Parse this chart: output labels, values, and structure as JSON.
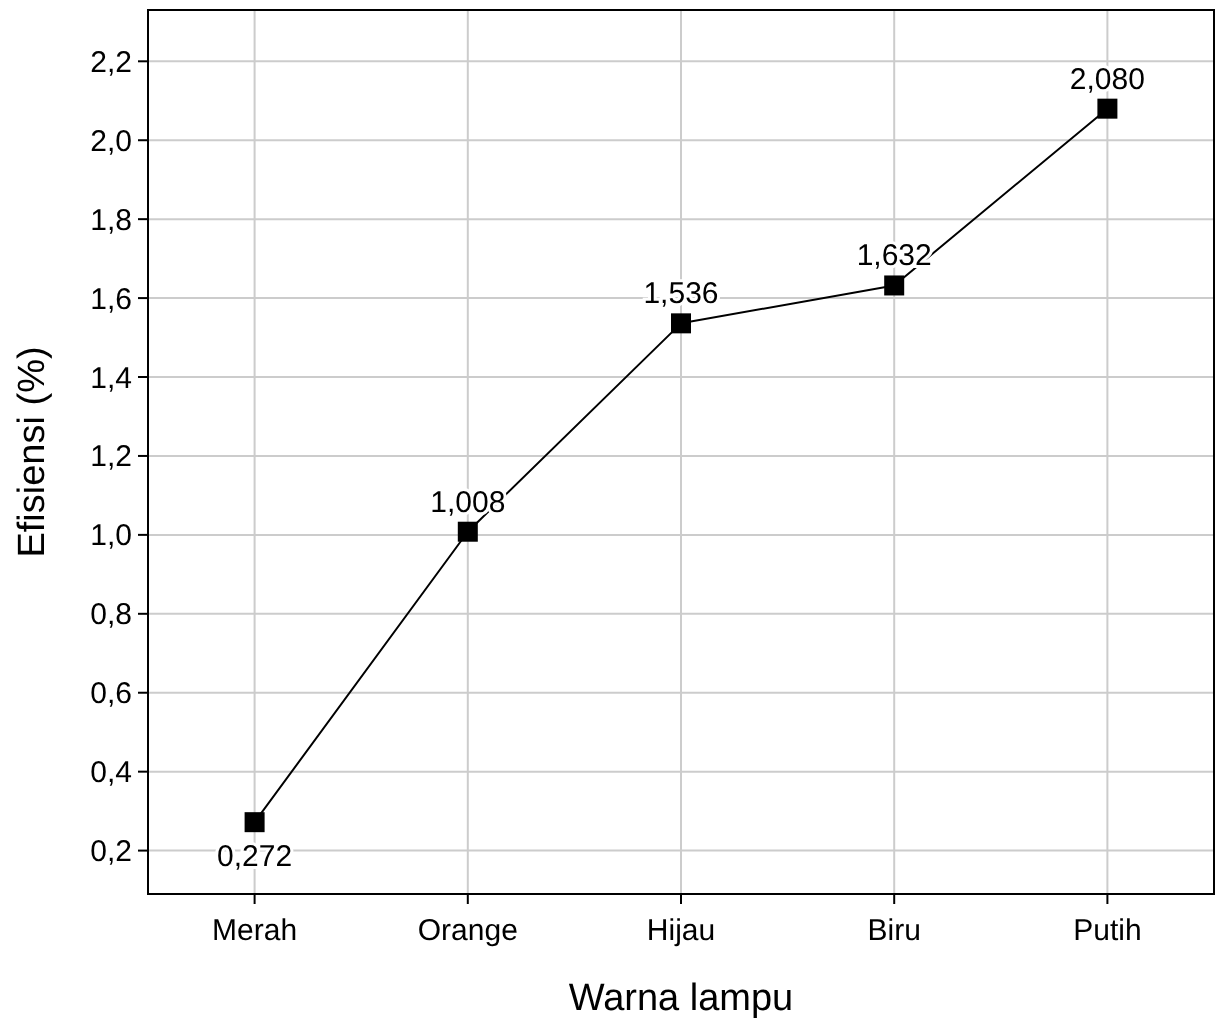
{
  "chart_data": {
    "type": "line",
    "xlabel": "Warna lampu",
    "ylabel": "Efisiensi (%)",
    "categories": [
      "Merah",
      "Orange",
      "Hijau",
      "Biru",
      "Putih"
    ],
    "series": [
      {
        "color": "#000000",
        "values": [
          0.272,
          1.008,
          1.536,
          1.632,
          2.08
        ],
        "value_labels": [
          "0,272",
          "1,008",
          "1,536",
          "1,632",
          "2,080"
        ]
      }
    ],
    "ylim": [
      0.09,
      2.33
    ],
    "yticks": [
      {
        "value": 0.2,
        "label": "0,2"
      },
      {
        "value": 0.4,
        "label": "0,4"
      },
      {
        "value": 0.6,
        "label": "0,6"
      },
      {
        "value": 0.8,
        "label": "0,8"
      },
      {
        "value": 1.0,
        "label": "1,0"
      },
      {
        "value": 1.2,
        "label": "1,2"
      },
      {
        "value": 1.4,
        "label": "1,4"
      },
      {
        "value": 1.6,
        "label": "1,6"
      },
      {
        "value": 1.8,
        "label": "1,8"
      },
      {
        "value": 2.0,
        "label": "2,0"
      },
      {
        "value": 2.2,
        "label": "2,2"
      }
    ],
    "grid": true,
    "marker": "square",
    "line_style": "solid"
  }
}
